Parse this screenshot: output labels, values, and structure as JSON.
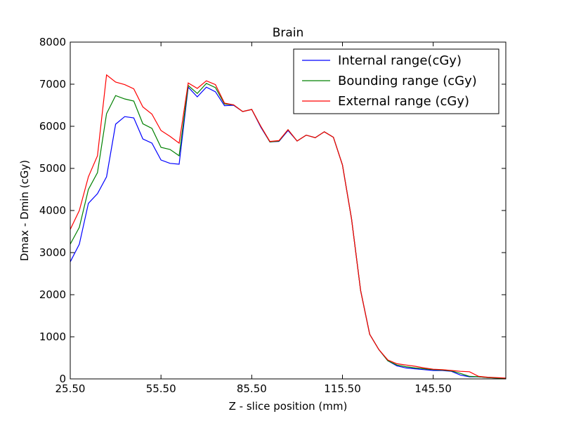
{
  "chart_data": {
    "type": "line",
    "title": "Brain",
    "xlabel": "Z - slice position (mm)",
    "ylabel": "Dmax - Dmin (cGy)",
    "xlim": [
      25.5,
      169.5
    ],
    "ylim": [
      0,
      8000
    ],
    "xticks": [
      25.5,
      55.5,
      85.5,
      115.5,
      145.5
    ],
    "xtick_labels": [
      "25.50",
      "55.50",
      "85.50",
      "115.50",
      "145.50"
    ],
    "yticks": [
      0,
      1000,
      2000,
      3000,
      4000,
      5000,
      6000,
      7000,
      8000
    ],
    "ytick_labels": [
      "0",
      "1000",
      "2000",
      "3000",
      "4000",
      "5000",
      "6000",
      "7000",
      "8000"
    ],
    "grid": false,
    "legend_position": "top-right",
    "x": [
      25.5,
      28.5,
      31.5,
      34.5,
      37.5,
      40.5,
      43.5,
      46.5,
      49.5,
      52.5,
      55.5,
      58.5,
      61.5,
      64.5,
      67.5,
      70.5,
      73.5,
      76.5,
      79.5,
      82.5,
      85.5,
      88.5,
      91.5,
      94.5,
      97.5,
      100.5,
      103.5,
      106.5,
      109.5,
      112.5,
      115.5,
      118.5,
      121.5,
      124.5,
      127.5,
      130.5,
      133.5,
      136.5,
      139.5,
      142.5,
      145.5,
      148.5,
      151.5,
      154.5,
      157.5,
      160.5,
      163.5,
      166.5,
      169.5
    ],
    "series": [
      {
        "name": "Internal range(cGy)",
        "color": "#0000ff",
        "values": [
          2780,
          3200,
          4170,
          4400,
          4800,
          6050,
          6230,
          6200,
          5700,
          5600,
          5200,
          5120,
          5100,
          6930,
          6700,
          6930,
          6820,
          6490,
          6500,
          6350,
          6400,
          5980,
          5630,
          5640,
          5900,
          5650,
          5790,
          5730,
          5870,
          5740,
          5080,
          3800,
          2100,
          1060,
          700,
          430,
          310,
          260,
          240,
          220,
          200,
          200,
          180,
          90,
          50,
          50,
          30,
          20,
          0
        ]
      },
      {
        "name": "Bounding range (cGy)",
        "color": "#008000",
        "values": [
          3200,
          3600,
          4500,
          4900,
          6300,
          6730,
          6650,
          6600,
          6060,
          5950,
          5500,
          5450,
          5300,
          6970,
          6780,
          7020,
          6920,
          6530,
          6510,
          6350,
          6400,
          6000,
          5630,
          5650,
          5920,
          5650,
          5790,
          5730,
          5870,
          5740,
          5080,
          3800,
          2100,
          1060,
          700,
          430,
          330,
          290,
          260,
          240,
          220,
          210,
          190,
          130,
          60,
          50,
          30,
          20,
          10
        ]
      },
      {
        "name": "External range (cGy)",
        "color": "#ff0000",
        "values": [
          3550,
          4000,
          4800,
          5300,
          7220,
          7050,
          6990,
          6890,
          6460,
          6290,
          5900,
          5760,
          5600,
          7030,
          6900,
          7080,
          6990,
          6550,
          6510,
          6350,
          6400,
          6000,
          5640,
          5660,
          5920,
          5650,
          5790,
          5730,
          5870,
          5740,
          5080,
          3800,
          2100,
          1060,
          700,
          450,
          360,
          330,
          300,
          260,
          230,
          220,
          200,
          180,
          170,
          60,
          40,
          30,
          20
        ]
      }
    ]
  }
}
